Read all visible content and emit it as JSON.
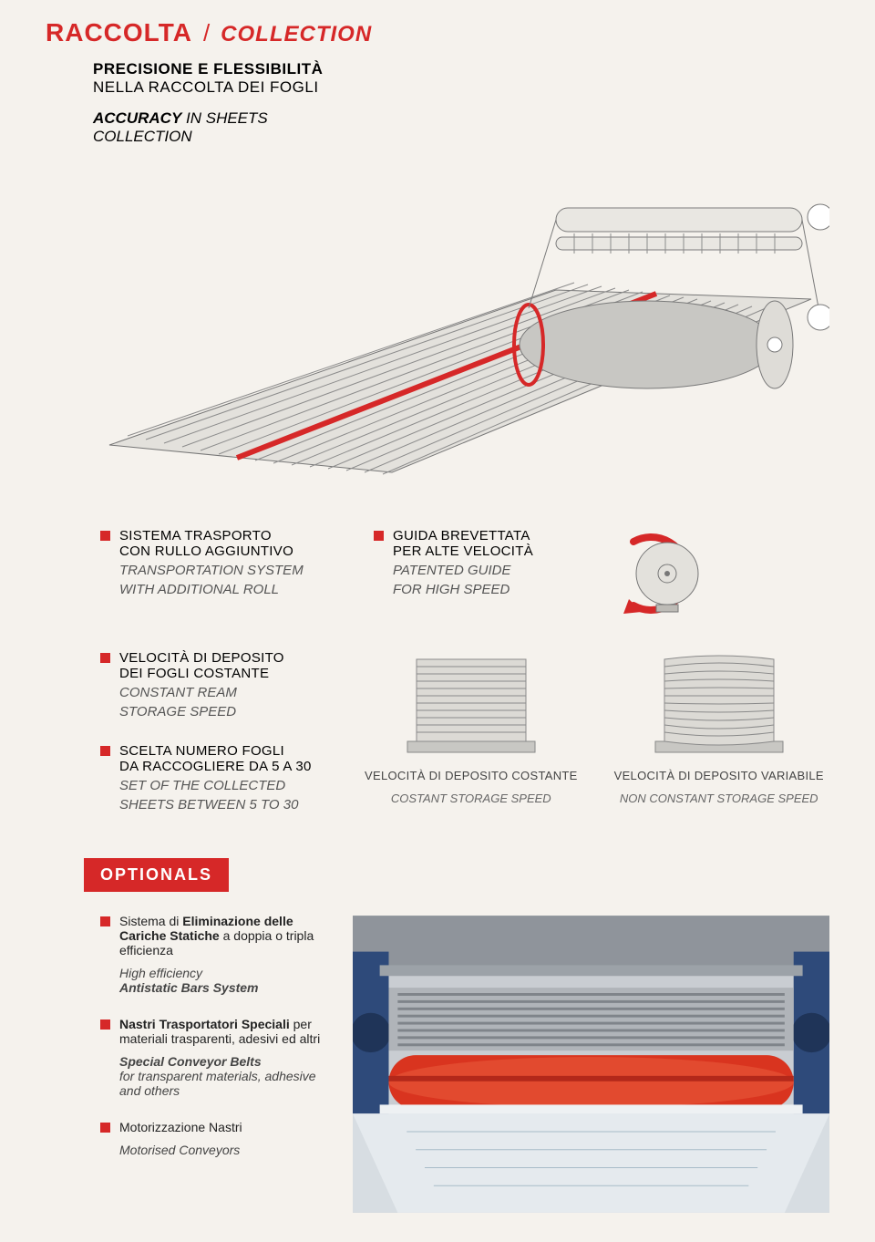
{
  "colors": {
    "accent": "#d62828",
    "bg": "#f5f2ed",
    "text": "#222222",
    "muted": "#555555",
    "grey_line": "#9a9a9a",
    "grey_fill": "#c8c7c3",
    "dark_fill": "#6b6b6b"
  },
  "typography": {
    "title_fontsize": 28,
    "heading_fontsize": 17,
    "body_fontsize": 15,
    "caption_fontsize": 13,
    "optionals_fontsize": 18
  },
  "title": {
    "main": "RACCOLTA",
    "slash": "/",
    "sub": "COLLECTION"
  },
  "intro": {
    "line1": "PRECISIONE E FLESSIBILITÀ",
    "line2": "NELLA RACCOLTA DEI FOGLI",
    "line3_bold": "ACCURACY",
    "line3_rest": " IN SHEETS",
    "line4": "COLLECTION"
  },
  "features_row1": {
    "f1_it1": "SISTEMA TRASPORTO",
    "f1_it2": "CON RULLO AGGIUNTIVO",
    "f1_en1": "TRANSPORTATION SYSTEM",
    "f1_en2": "WITH ADDITIONAL ROLL",
    "f2_it1": "GUIDA BREVETTATA",
    "f2_it2": "PER ALTE VELOCITÀ",
    "f2_en1": "PATENTED GUIDE",
    "f2_en2": "FOR HIGH SPEED"
  },
  "features_row2": {
    "f3_it1": "VELOCITÀ DI DEPOSITO",
    "f3_it2": "DEI FOGLI COSTANTE",
    "f3_en1": "CONSTANT REAM",
    "f3_en2": "STORAGE SPEED",
    "f4_it1": "SCELTA NUMERO FOGLI",
    "f4_it2": "DA RACCOGLIERE DA 5 A 30",
    "f4_en1": "SET OF THE COLLECTED",
    "f4_en2": "SHEETS BETWEEN 5 TO 30"
  },
  "stacks": {
    "left_it": "VELOCITÀ DI DEPOSITO COSTANTE",
    "left_en": "COSTANT STORAGE SPEED",
    "right_it": "VELOCITÀ DI DEPOSITO VARIABILE",
    "right_en": "NON CONSTANT STORAGE SPEED"
  },
  "optionals": {
    "label": "OPTIONALS",
    "items": [
      {
        "it": "Sistema di <b>Eliminazione delle Cariche Statiche</b> a doppia o tripla efficienza",
        "en": "High efficiency<br><b><i>Antistatic Bars System</i></b>"
      },
      {
        "it": "<b>Nastri Trasportatori Speciali</b> per materiali trasparenti, adesivi ed altri",
        "en": "<b><i>Special Conveyor Belts</i></b><br><i>for transparent materials, adhesive and others</i>"
      },
      {
        "it": "Motorizzazione Nastri",
        "en": "<i>Motorised Conveyors</i>"
      }
    ]
  }
}
